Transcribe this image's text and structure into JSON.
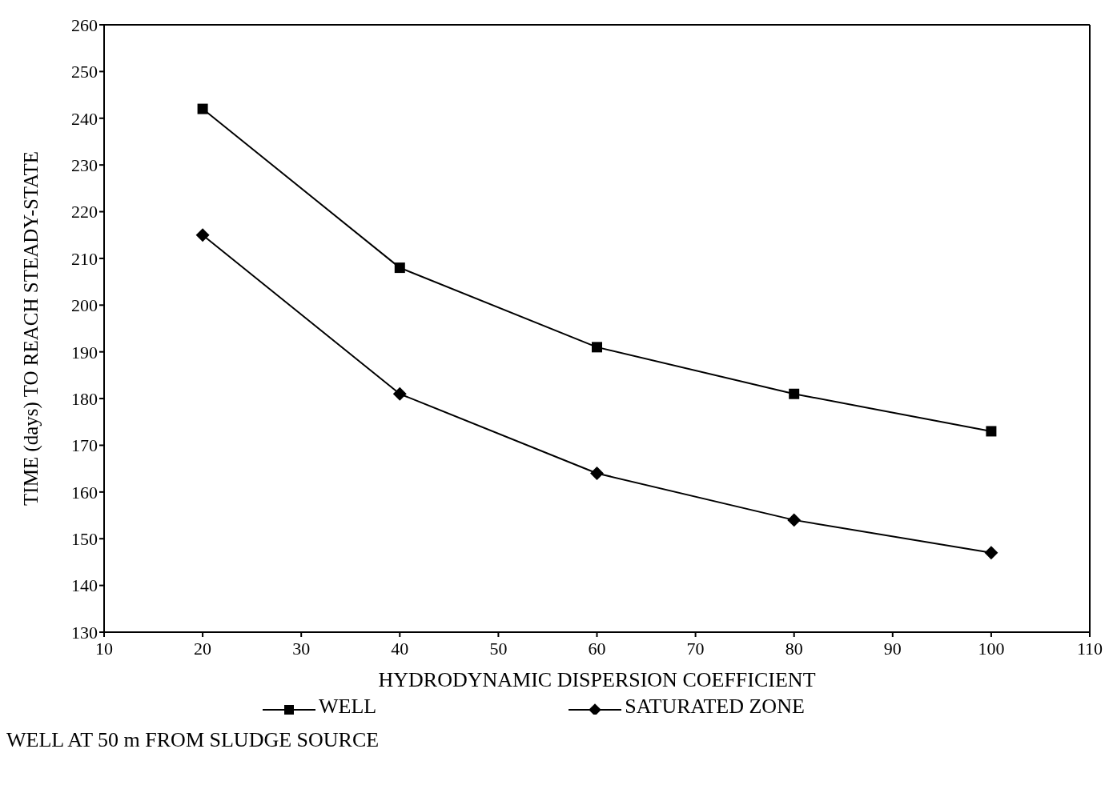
{
  "chart_data": {
    "type": "line",
    "xlabel": "HYDRODYNAMIC DISPERSION COEFFICIENT",
    "ylabel": "TIME (days) TO REACH STEADY-STATE",
    "x": [
      20,
      40,
      60,
      80,
      100
    ],
    "series": [
      {
        "name": "WELL",
        "color": "#000000",
        "marker": "square",
        "values": [
          242,
          208,
          191,
          181,
          173
        ]
      },
      {
        "name": "SATURATED ZONE",
        "color": "#000000",
        "marker": "diamond",
        "values": [
          215,
          181,
          164,
          154,
          147
        ]
      }
    ],
    "xlim": [
      10,
      110
    ],
    "xticks": [
      10,
      20,
      30,
      40,
      50,
      60,
      70,
      80,
      90,
      100,
      110
    ],
    "ylim": [
      130,
      260
    ],
    "yticks": [
      130,
      140,
      150,
      160,
      170,
      180,
      190,
      200,
      210,
      220,
      230,
      240,
      250,
      260
    ],
    "grid": false,
    "legend": "bottom",
    "line_style": "solid",
    "annotations": [
      "WELL AT 50 m FROM SLUDGE SOURCE"
    ]
  }
}
